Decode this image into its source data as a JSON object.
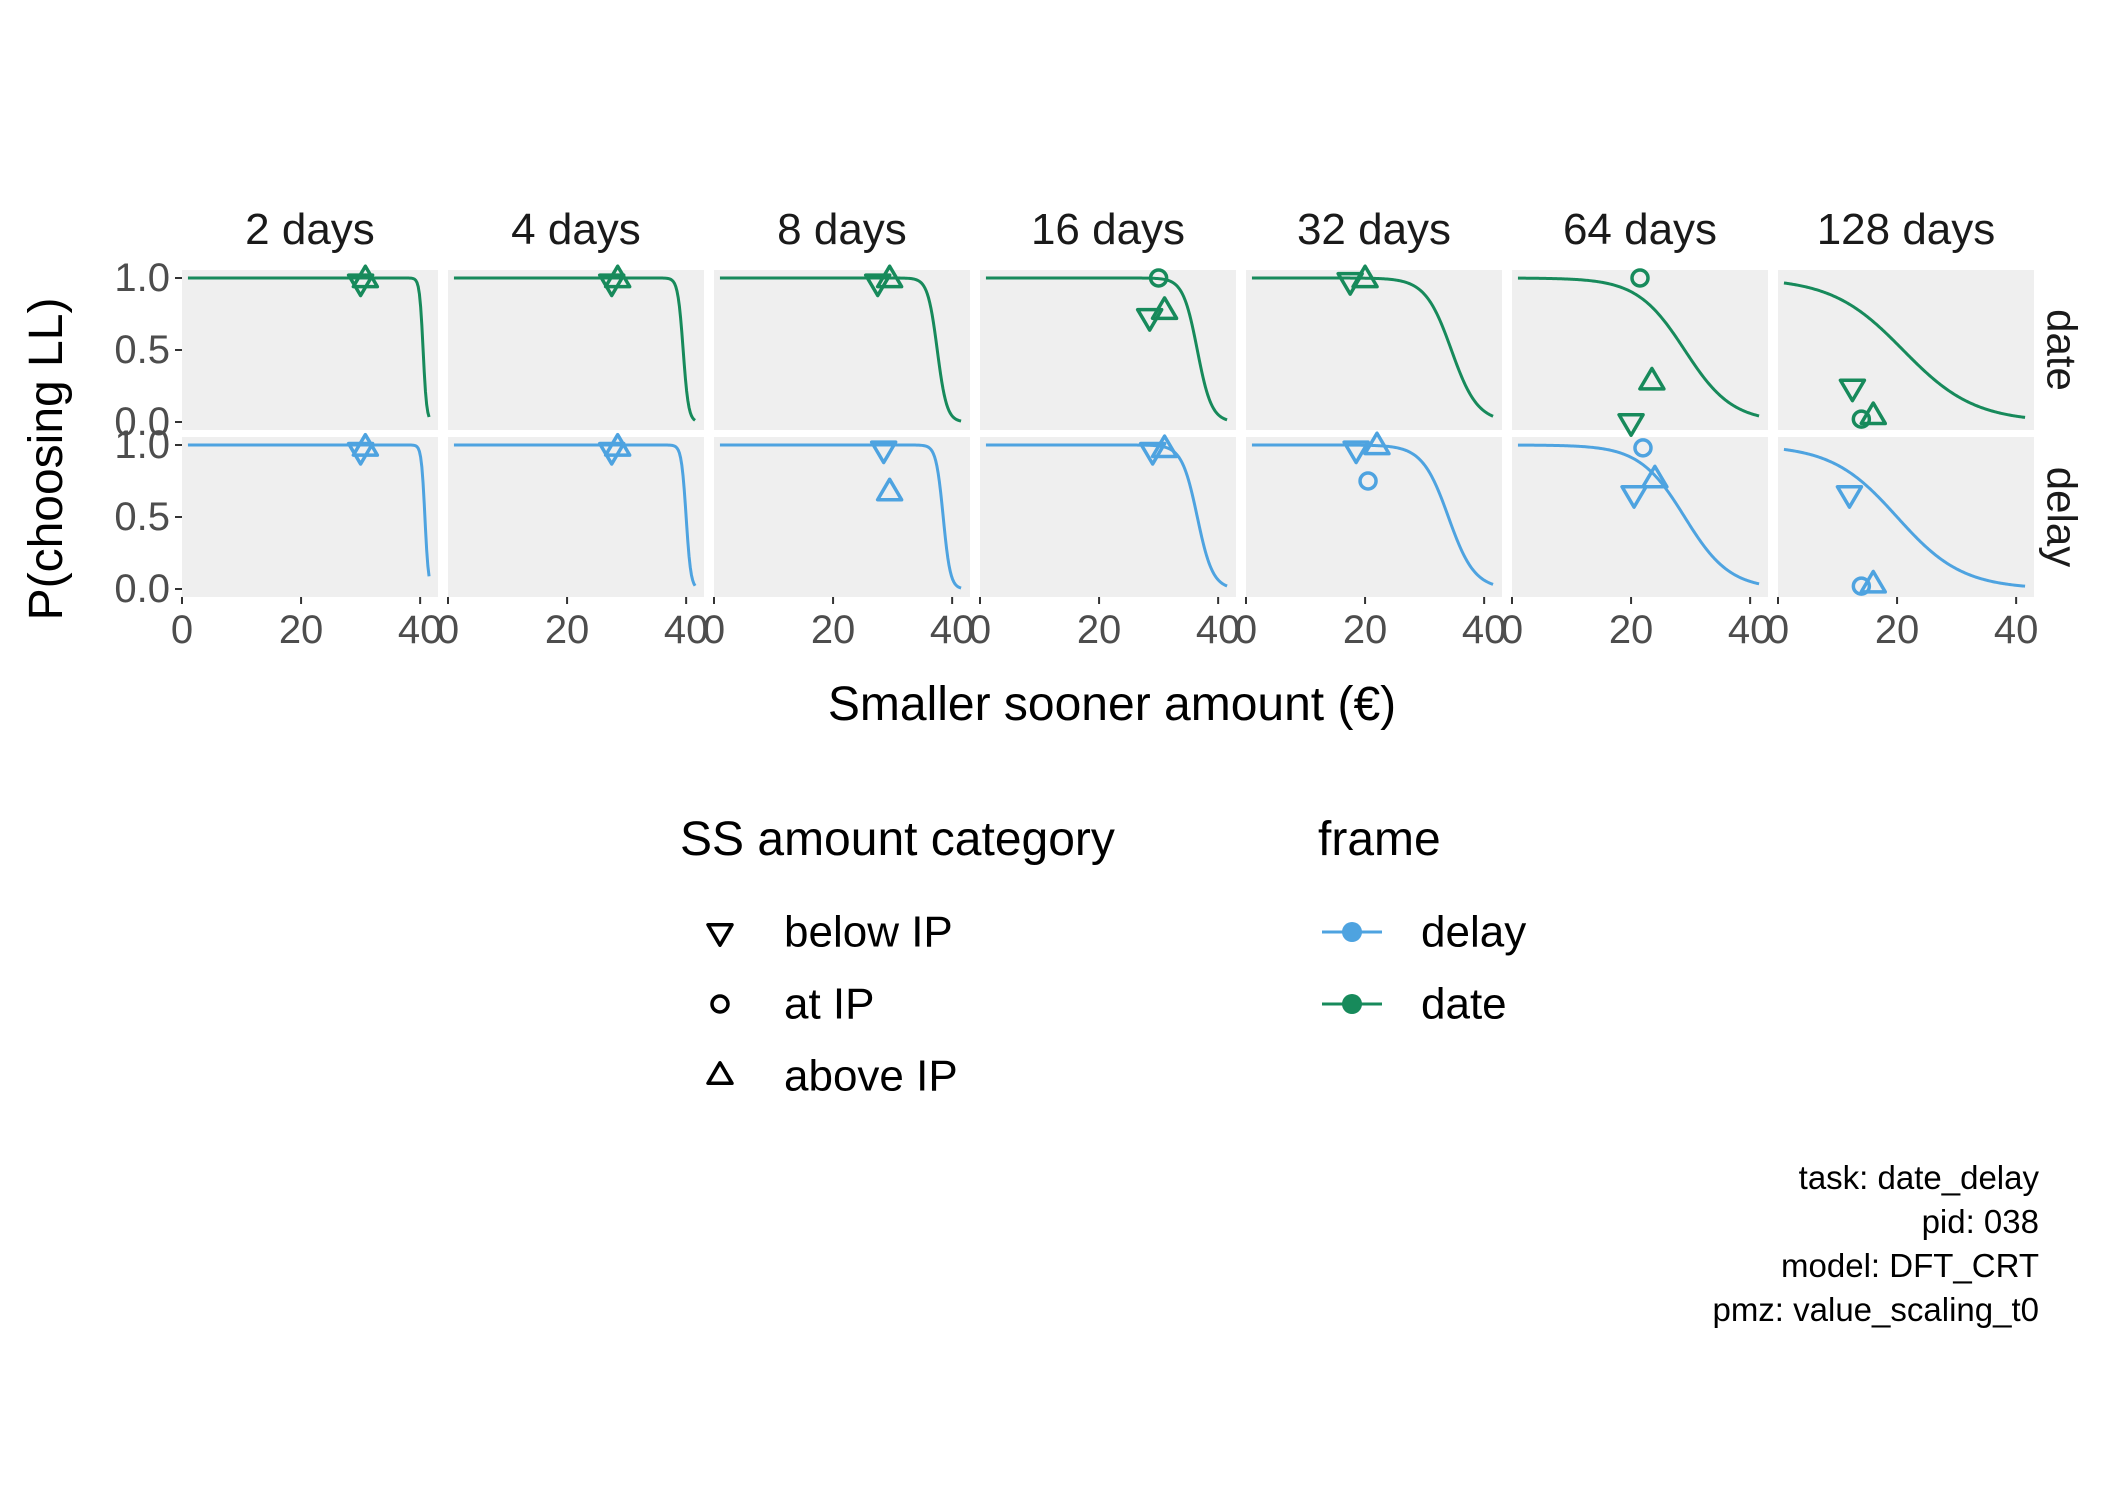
{
  "chart_data": {
    "type": "line",
    "xlabel": "Smaller sooner amount (€)",
    "ylabel": "P(choosing LL)",
    "xlim": [
      0,
      43
    ],
    "ylim": [
      0,
      1
    ],
    "x_ticks": [
      0,
      20,
      40
    ],
    "y_ticks": [
      0.0,
      0.5,
      1.0
    ],
    "y_tick_labels": [
      "0.0",
      "0.5",
      "1.0"
    ],
    "facet_columns": [
      "2 days",
      "4 days",
      "8 days",
      "16 days",
      "32 days",
      "64 days",
      "128 days"
    ],
    "facet_rows": [
      "date",
      "delay"
    ],
    "grid": false,
    "legend_position": "bottom",
    "legend": {
      "shape_title": "SS amount category",
      "shape_items": [
        {
          "label": "below IP",
          "shape": "triangle-down"
        },
        {
          "label": "at IP",
          "shape": "circle"
        },
        {
          "label": "above IP",
          "shape": "triangle-up"
        }
      ],
      "color_title": "frame",
      "color_items": [
        {
          "label": "delay",
          "color": "#4EA3E0"
        },
        {
          "label": "date",
          "color": "#178A5B"
        }
      ]
    },
    "colors": {
      "delay": "#4EA3E0",
      "date": "#178A5B",
      "panel_bg": "#EFEFEF"
    },
    "caption": [
      "task: date_delay",
      "pid: 038",
      "model: DFT_CRT",
      "pmz: value_scaling_t0"
    ],
    "curves": {
      "date": [
        {
          "x50": 40.5,
          "s": 0.3
        },
        {
          "x50": 39.5,
          "s": 0.45
        },
        {
          "x50": 37.5,
          "s": 0.8
        },
        {
          "x50": 36.5,
          "s": 1.2
        },
        {
          "x50": 34.5,
          "s": 2.2
        },
        {
          "x50": 29,
          "s": 4
        },
        {
          "x50": 21,
          "s": 6
        }
      ],
      "delay": [
        {
          "x50": 40.8,
          "s": 0.3
        },
        {
          "x50": 40,
          "s": 0.4
        },
        {
          "x50": 38.5,
          "s": 0.6
        },
        {
          "x50": 36.5,
          "s": 1.3
        },
        {
          "x50": 34,
          "s": 2.2
        },
        {
          "x50": 29,
          "s": 3.8
        },
        {
          "x50": 20,
          "s": 5.5
        }
      ]
    },
    "points": {
      "date": [
        [
          {
            "cat": "below IP",
            "x": 30,
            "y": 0.97
          },
          {
            "cat": "above IP",
            "x": 30.8,
            "y": 0.99
          }
        ],
        [
          {
            "cat": "below IP",
            "x": 27.5,
            "y": 0.97
          },
          {
            "cat": "above IP",
            "x": 28.5,
            "y": 0.99
          }
        ],
        [
          {
            "cat": "below IP",
            "x": 27.5,
            "y": 0.97
          },
          {
            "cat": "above IP",
            "x": 29.5,
            "y": 0.99
          }
        ],
        [
          {
            "cat": "at IP",
            "x": 30,
            "y": 1.0
          },
          {
            "cat": "below IP",
            "x": 28.5,
            "y": 0.73
          },
          {
            "cat": "above IP",
            "x": 31,
            "y": 0.77
          }
        ],
        [
          {
            "cat": "below IP",
            "x": 17.5,
            "y": 0.98
          },
          {
            "cat": "above IP",
            "x": 20,
            "y": 0.99
          }
        ],
        [
          {
            "cat": "at IP",
            "x": 21.5,
            "y": 1.0
          },
          {
            "cat": "above IP",
            "x": 23.5,
            "y": 0.28
          },
          {
            "cat": "below IP",
            "x": 20,
            "y": 0.0
          }
        ],
        [
          {
            "cat": "below IP",
            "x": 12.5,
            "y": 0.24
          },
          {
            "cat": "at IP",
            "x": 14,
            "y": 0.02
          },
          {
            "cat": "above IP",
            "x": 16,
            "y": 0.04
          }
        ]
      ],
      "delay": [
        [
          {
            "cat": "below IP",
            "x": 30,
            "y": 0.96
          },
          {
            "cat": "above IP",
            "x": 30.8,
            "y": 0.98
          }
        ],
        [
          {
            "cat": "below IP",
            "x": 27.5,
            "y": 0.96
          },
          {
            "cat": "above IP",
            "x": 28.5,
            "y": 0.98
          }
        ],
        [
          {
            "cat": "below IP",
            "x": 28.5,
            "y": 0.97
          },
          {
            "cat": "above IP",
            "x": 29.5,
            "y": 0.67
          }
        ],
        [
          {
            "cat": "below IP",
            "x": 29,
            "y": 0.96
          },
          {
            "cat": "above IP",
            "x": 31,
            "y": 0.97
          }
        ],
        [
          {
            "cat": "below IP",
            "x": 18.5,
            "y": 0.97
          },
          {
            "cat": "above IP",
            "x": 22,
            "y": 0.99
          },
          {
            "cat": "at IP",
            "x": 20.5,
            "y": 0.75
          }
        ],
        [
          {
            "cat": "at IP",
            "x": 22,
            "y": 0.98
          },
          {
            "cat": "below IP",
            "x": 20.5,
            "y": 0.66
          },
          {
            "cat": "above IP",
            "x": 24,
            "y": 0.76
          }
        ],
        [
          {
            "cat": "below IP",
            "x": 12,
            "y": 0.66
          },
          {
            "cat": "at IP",
            "x": 14,
            "y": 0.02
          },
          {
            "cat": "above IP",
            "x": 16,
            "y": 0.03
          }
        ]
      ]
    }
  }
}
